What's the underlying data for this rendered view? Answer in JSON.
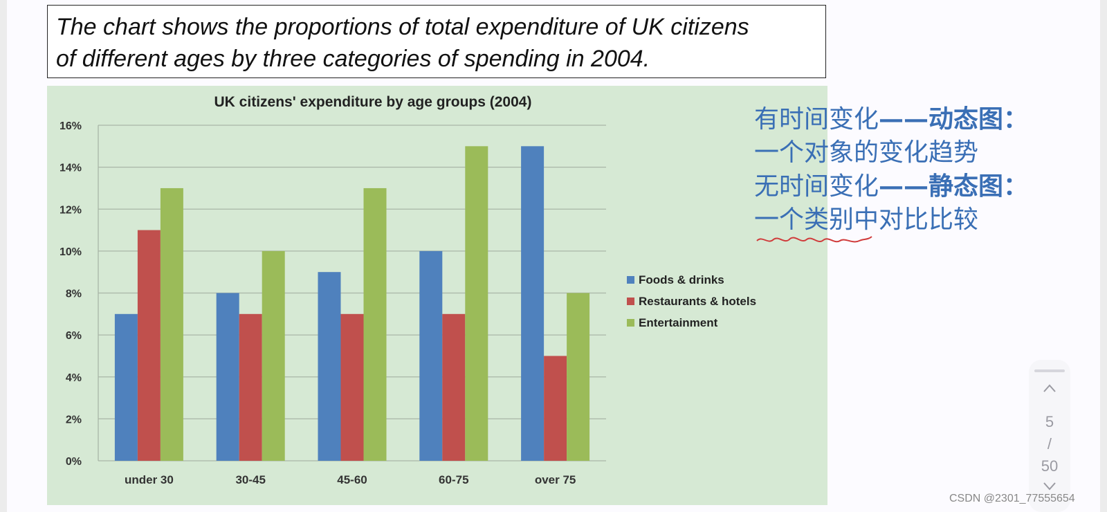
{
  "caption": {
    "line1": "The chart shows the proportions of total expenditure of UK citizens",
    "line2": "of different ages by three categories of spending in 2004."
  },
  "chart_data": {
    "type": "bar",
    "title": "UK citizens' expenditure by age groups (2004)",
    "categories": [
      "under 30",
      "30-45",
      "45-60",
      "60-75",
      "over 75"
    ],
    "series": [
      {
        "name": "Foods & drinks",
        "color": "#4f81bd",
        "values": [
          7,
          8,
          9,
          10,
          15
        ]
      },
      {
        "name": "Restaurants & hotels",
        "color": "#c0504d",
        "values": [
          11,
          7,
          7,
          7,
          5
        ]
      },
      {
        "name": "Entertainment",
        "color": "#9bbb59",
        "values": [
          13,
          10,
          13,
          15,
          8
        ]
      }
    ],
    "ylim": [
      0,
      16
    ],
    "yticks": [
      "0%",
      "2%",
      "4%",
      "6%",
      "8%",
      "10%",
      "12%",
      "14%",
      "16%"
    ],
    "grid": true,
    "legend_position": "right",
    "background": "#d6e9d4"
  },
  "notes": {
    "line1_a": "有时间变化",
    "line1_b": "——动态图：",
    "line2": "一个对象的变化趋势",
    "line3_a": "无时间变化",
    "line3_b": "——静态图：",
    "line4": "一个类别中对比比较"
  },
  "pager": {
    "current": "5",
    "separator": "/",
    "total": "50"
  },
  "watermark": "CSDN @2301_77555654",
  "icons": {
    "up": "chevron-up-icon",
    "down": "chevron-down-icon"
  }
}
